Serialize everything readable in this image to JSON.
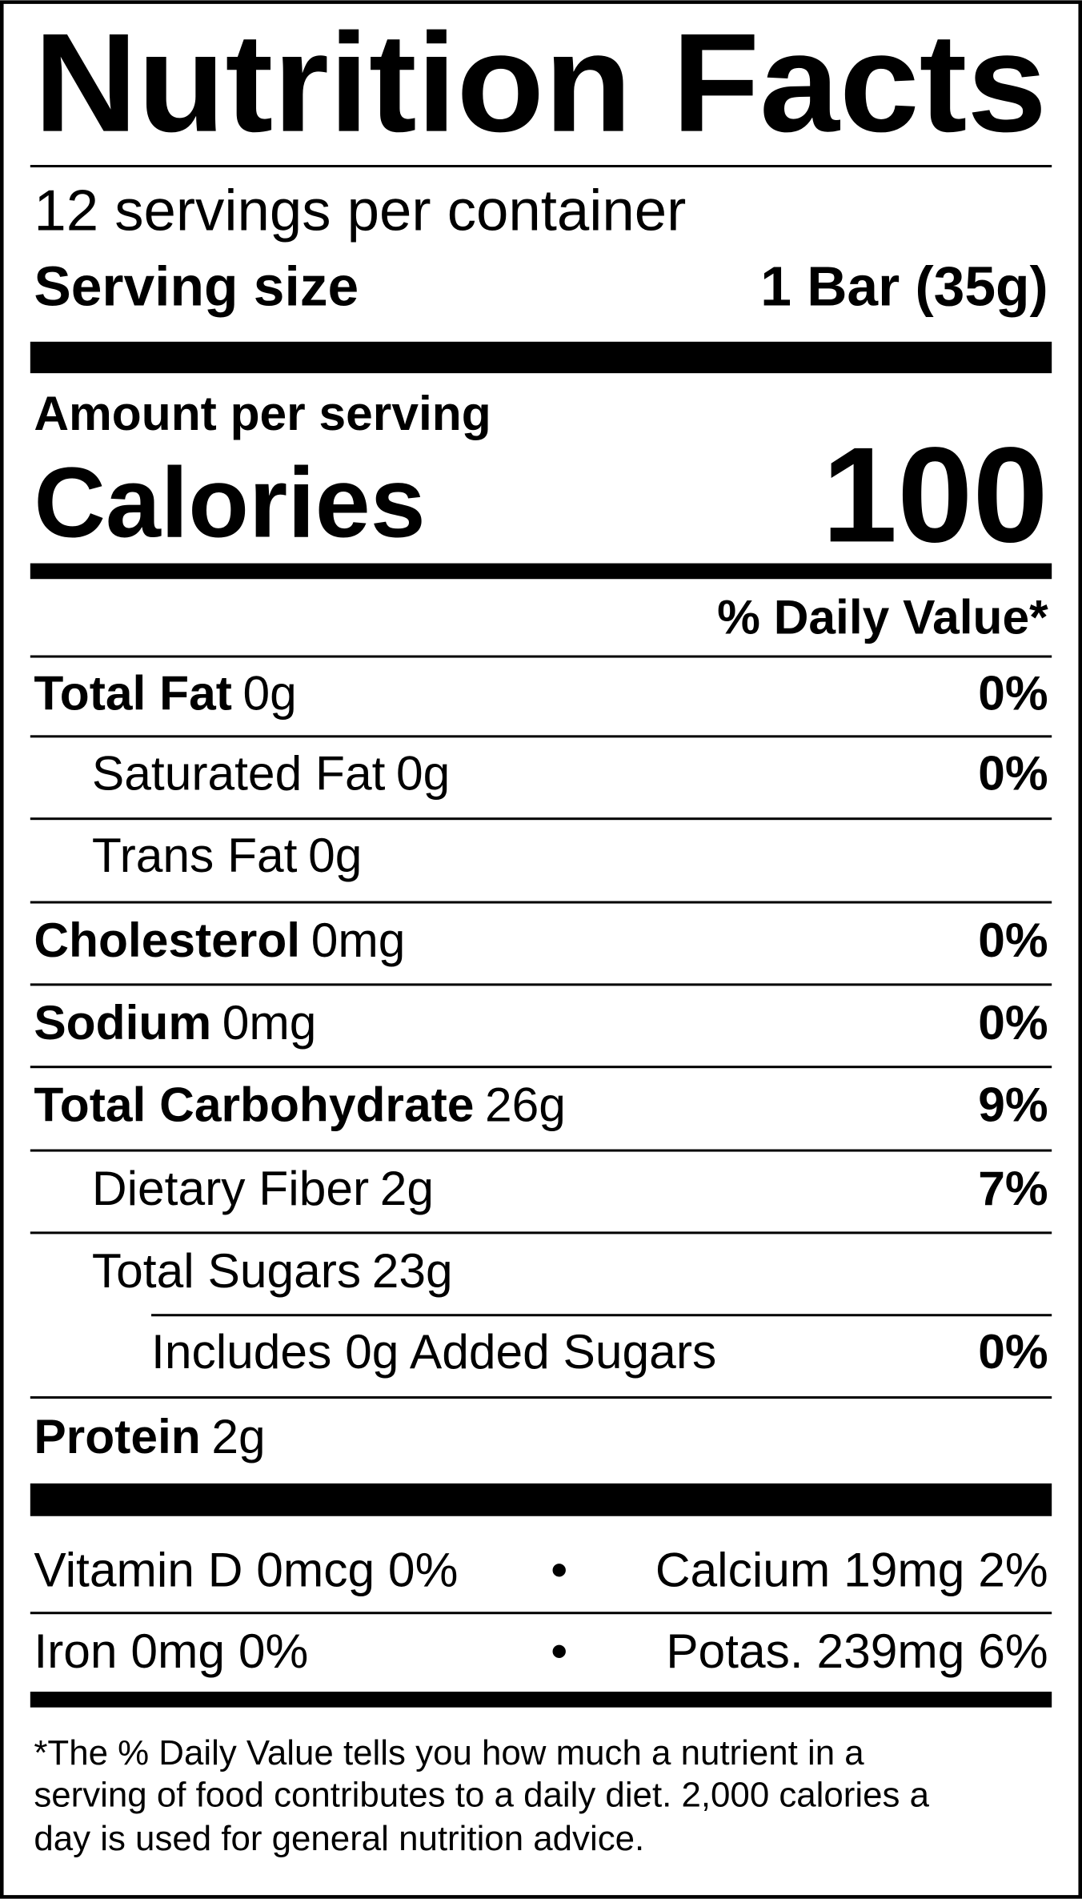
{
  "title": "Nutrition Facts",
  "servings": "12 servings per container",
  "serving_size": {
    "label": "Serving size",
    "value": "1 Bar (35g)"
  },
  "amount_per_serving": "Amount per serving",
  "calories": {
    "label": "Calories",
    "value": 100
  },
  "daily_value_header": "% Daily Value*",
  "nutrients": [
    {
      "name": "Total Fat",
      "amount": "0g",
      "dv": "0%"
    },
    {
      "name": "Saturated Fat",
      "amount": "0g",
      "dv": "0%"
    },
    {
      "name": "Trans Fat",
      "amount": "0g"
    },
    {
      "name": "Cholesterol",
      "amount": "0mg",
      "dv": "0%"
    },
    {
      "name": "Sodium",
      "amount": "0mg",
      "dv": "0%"
    },
    {
      "name": "Total Carbohydrate",
      "amount": "26g",
      "dv": "9%"
    },
    {
      "name": "Dietary Fiber",
      "amount": "2g",
      "dv": "7%"
    },
    {
      "name": "Total Sugars",
      "amount": "23g"
    },
    {
      "name": "Includes 0g Added Sugars",
      "dv": "0%"
    },
    {
      "name": "Protein",
      "amount": "2g"
    }
  ],
  "micronutrients": [
    [
      "Vitamin D 0mcg 0%",
      "Calcium 19mg 2%"
    ],
    [
      "Iron 0mg 0%",
      "Potas. 239mg 6%"
    ]
  ],
  "separator": "•",
  "footnote": [
    "*The % Daily Value tells you how much a nutrient in a",
    "serving of food contributes to a daily diet. 2,000 calories a",
    "day is used for general nutrition advice."
  ]
}
